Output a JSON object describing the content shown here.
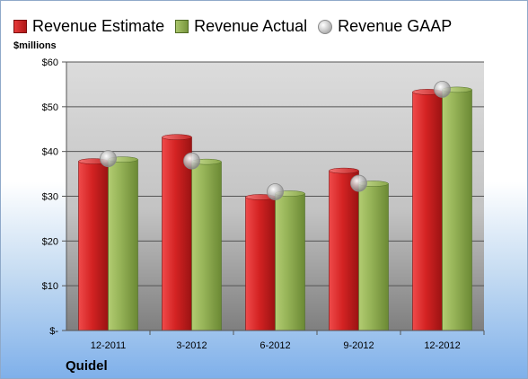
{
  "chart_data": {
    "type": "bar",
    "categories": [
      "12-2011",
      "3-2012",
      "6-2012",
      "9-2012",
      "12-2012"
    ],
    "series": [
      {
        "name": "Revenue Estimate",
        "kind": "bar",
        "color": "#cc2222",
        "values": [
          37.8,
          43.2,
          29.8,
          35.7,
          53.3
        ]
      },
      {
        "name": "Revenue Actual",
        "kind": "bar",
        "color": "#8fae52",
        "values": [
          38.2,
          37.7,
          30.6,
          32.8,
          53.8
        ]
      },
      {
        "name": "Revenue GAAP",
        "kind": "marker",
        "color": "#b9b9b9",
        "values": [
          38.4,
          37.9,
          31.0,
          32.9,
          53.9
        ]
      }
    ],
    "ylim": [
      0,
      60
    ],
    "yticks": [
      0,
      10,
      20,
      30,
      40,
      50,
      60
    ],
    "ytick_labels": [
      "$-",
      "$10",
      "$20",
      "$30",
      "$40",
      "$50",
      "$60"
    ],
    "ylabel": "$millions",
    "xlabel": "",
    "grid": true,
    "legend_position": "top"
  },
  "footer": {
    "company": "Quidel"
  }
}
